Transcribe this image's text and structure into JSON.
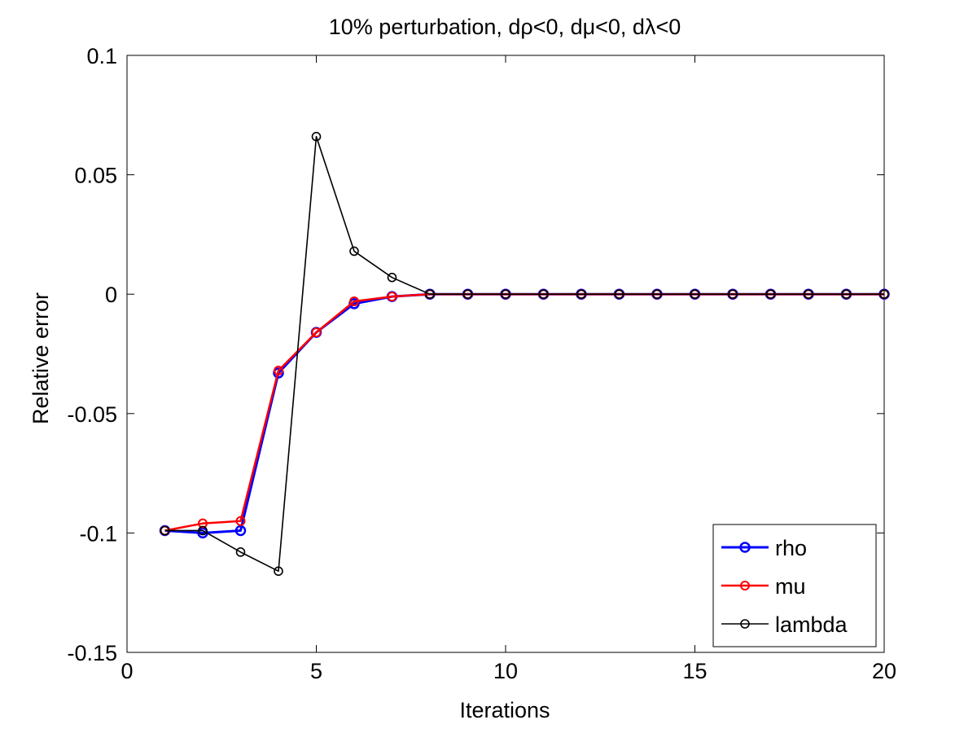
{
  "chart_data": {
    "type": "line",
    "title": "10% perturbation, dρ<0, dμ<0, dλ<0",
    "xlabel": "Iterations",
    "ylabel": "Relative error",
    "xlim": [
      0,
      20
    ],
    "ylim": [
      -0.15,
      0.1
    ],
    "xticks": [
      0,
      5,
      10,
      15,
      20
    ],
    "xtick_labels": [
      "0",
      "5",
      "10",
      "15",
      "20"
    ],
    "yticks": [
      0.1,
      0.05,
      0,
      -0.05,
      -0.1,
      -0.15
    ],
    "ytick_labels": [
      "0.1",
      "0.05",
      "0",
      "-0.05",
      "-0.1",
      "-0.15"
    ],
    "grid": false,
    "legend_position": "bottom-right",
    "x": [
      1,
      2,
      3,
      4,
      5,
      6,
      7,
      8,
      9,
      10,
      11,
      12,
      13,
      14,
      15,
      16,
      17,
      18,
      19,
      20
    ],
    "series": [
      {
        "name": "rho",
        "color": "#0000ff",
        "marker": "circle",
        "values": [
          -0.099,
          -0.1,
          -0.099,
          -0.033,
          -0.016,
          -0.004,
          -0.001,
          0.0,
          0,
          0,
          0,
          0,
          0,
          0,
          0,
          0,
          0,
          0,
          0,
          0
        ]
      },
      {
        "name": "mu",
        "color": "#ff0000",
        "marker": "circle",
        "values": [
          -0.099,
          -0.096,
          -0.095,
          -0.032,
          -0.016,
          -0.003,
          -0.001,
          0.0,
          0,
          0,
          0,
          0,
          0,
          0,
          0,
          0,
          0,
          0,
          0,
          0
        ]
      },
      {
        "name": "lambda",
        "color": "#000000",
        "marker": "circle",
        "values": [
          -0.099,
          -0.099,
          -0.108,
          -0.116,
          0.066,
          0.018,
          0.007,
          0.0,
          0,
          0,
          0,
          0,
          0,
          0,
          0,
          0,
          0,
          0,
          0,
          0
        ]
      }
    ]
  }
}
